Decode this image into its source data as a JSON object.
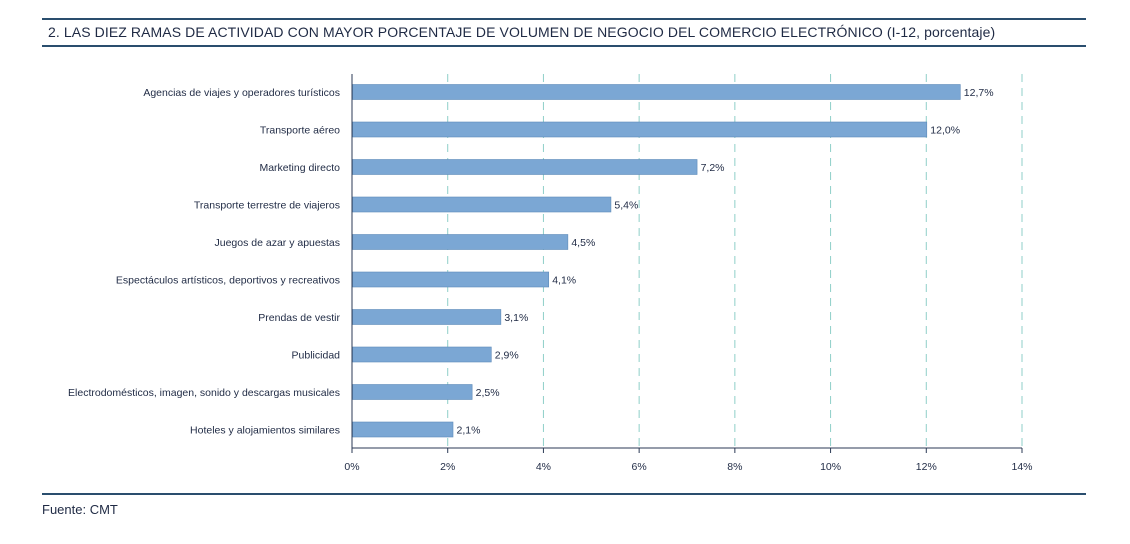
{
  "header": {
    "title": "2.  LAS DIEZ RAMAS DE ACTIVIDAD CON MAYOR PORCENTAJE DE VOLUMEN DE NEGOCIO DEL COMERCIO ELECTRÓNICO (I-12, porcentaje)"
  },
  "footer": {
    "source": "Fuente: CMT"
  },
  "colors": {
    "bar": "#7ba7d4",
    "bar_edge": "#5e8ab8",
    "grid": "#8fcfc8",
    "axis": "#2b3a55",
    "rule": "#2a4e6e"
  },
  "chart_data": {
    "type": "bar",
    "orientation": "horizontal",
    "title": "2.  LAS DIEZ RAMAS DE ACTIVIDAD CON MAYOR PORCENTAJE DE VOLUMEN DE NEGOCIO DEL COMERCIO ELECTRÓNICO (I-12, porcentaje)",
    "categories": [
      "Agencias de viajes y operadores turísticos",
      "Transporte aéreo",
      "Marketing directo",
      "Transporte terrestre de viajeros",
      "Juegos de azar y apuestas",
      "Espectáculos artísticos, deportivos y recreativos",
      "Prendas de vestir",
      "Publicidad",
      "Electrodomésticos, imagen, sonido y descargas musicales",
      "Hoteles  y alojamientos similares"
    ],
    "values": [
      12.7,
      12.0,
      7.2,
      5.4,
      4.5,
      4.1,
      3.1,
      2.9,
      2.5,
      2.1
    ],
    "value_labels": [
      "12,7%",
      "12,0%",
      "7,2%",
      "5,4%",
      "4,5%",
      "4,1%",
      "3,1%",
      "2,9%",
      "2,5%",
      "2,1%"
    ],
    "xlim": [
      0,
      14
    ],
    "xticks": [
      0,
      2,
      4,
      6,
      8,
      10,
      12,
      14
    ],
    "xtick_labels": [
      "0%",
      "2%",
      "4%",
      "6%",
      "8%",
      "10%",
      "12%",
      "14%"
    ],
    "xlabel": "",
    "ylabel": "",
    "grid": "vertical dashed",
    "legend": "none"
  }
}
